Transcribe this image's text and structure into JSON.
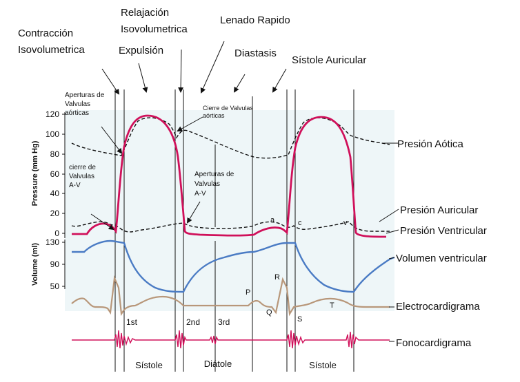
{
  "phases": {
    "contraccion_1": "Contracción",
    "contraccion_2": "Isovolumetrica",
    "relajacion_1": "Relajación",
    "relajacion_2": "Isovolumetrica",
    "expulsion": "Expulsión",
    "lenado": "Lenado Rapido",
    "diastasis": "Diastasis",
    "sistole_auricular": "Sístole Auricular"
  },
  "annotations": {
    "aperturas_aorticas": [
      "Aperturas de",
      "Valvulas",
      "aórticas"
    ],
    "cierre_aorticas": [
      "Cierre de Valvulas",
      "aórticas"
    ],
    "cierre_av": [
      "cierre de",
      "Valvulas",
      "A-V"
    ],
    "aperturas_av": [
      "Aperturas de",
      "Valvulas",
      "A-V"
    ]
  },
  "curves": {
    "presion_aortica": "Presión Aótica",
    "presion_auricular": "Presión Auricular",
    "presion_ventricular": "Presión Ventricular",
    "volumen": "Volumen ventricular",
    "ecg": "Electrocardigrama",
    "fono": "Fonocardigrama"
  },
  "axes": {
    "pressure_label": "Pressure (mm Hg)",
    "pressure_ticks": [
      "120",
      "100",
      "80",
      "60",
      "40",
      "20",
      "0"
    ],
    "volume_label": "Volume (ml)",
    "volume_ticks": [
      "130",
      "90",
      "50"
    ]
  },
  "waves": {
    "a": "a",
    "c": "c",
    "v": "v",
    "P": "P",
    "Q": "Q",
    "R": "R",
    "S": "S",
    "T": "T"
  },
  "sounds": {
    "first": "1st",
    "second": "2nd",
    "third": "3rd"
  },
  "cycle": {
    "sistole_1": "Sístole",
    "diatole": "Diátole",
    "sistole_2": "Sístole"
  },
  "colors": {
    "ventricular": "#d0105a",
    "aortic": "#111111",
    "volume": "#4a7bc4",
    "ecg": "#b8977a",
    "phono": "#d0105a",
    "fill": "#eef6f8"
  }
}
